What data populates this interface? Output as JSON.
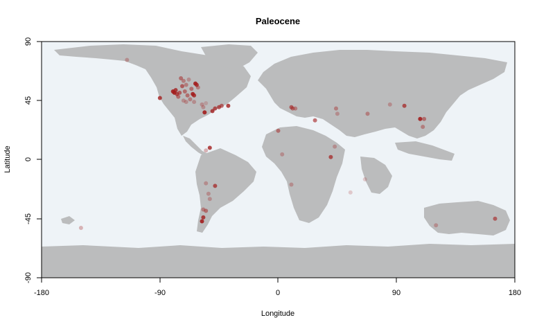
{
  "title": "Paleocene",
  "xlabel": "Longitude",
  "ylabel": "Latitude",
  "xlim": [
    -180,
    180
  ],
  "ylim": [
    -90,
    90
  ],
  "xticks": [
    "-180",
    "-90",
    "0",
    "90",
    "180"
  ],
  "yticks": [
    "90",
    "45",
    "0",
    "-45",
    "-90"
  ],
  "colors": {
    "ocean": "#eef3f7",
    "land": "#bbbcbd",
    "point": "#a31d1d",
    "frame": "#000000"
  },
  "chart_data": {
    "type": "scatter",
    "title": "Paleocene",
    "xlabel": "Longitude",
    "ylabel": "Latitude",
    "xlim": [
      -180,
      180
    ],
    "ylim": [
      -90,
      90
    ],
    "points": [
      {
        "lon": -115,
        "lat": 76,
        "a": 0.3
      },
      {
        "lon": -90,
        "lat": 47,
        "a": 0.8
      },
      {
        "lon": -80,
        "lat": 52,
        "a": 0.9
      },
      {
        "lon": -79,
        "lat": 51,
        "a": 0.9
      },
      {
        "lon": -78,
        "lat": 53,
        "a": 0.8
      },
      {
        "lon": -77,
        "lat": 50,
        "a": 0.7
      },
      {
        "lon": -76,
        "lat": 48,
        "a": 0.5
      },
      {
        "lon": -75,
        "lat": 51,
        "a": 0.6
      },
      {
        "lon": -74,
        "lat": 62,
        "a": 0.5
      },
      {
        "lon": -73,
        "lat": 56,
        "a": 0.6
      },
      {
        "lon": -72,
        "lat": 60,
        "a": 0.4
      },
      {
        "lon": -71,
        "lat": 52,
        "a": 0.5
      },
      {
        "lon": -70,
        "lat": 57,
        "a": 0.4
      },
      {
        "lon": -69,
        "lat": 49,
        "a": 0.5
      },
      {
        "lon": -68,
        "lat": 61,
        "a": 0.3
      },
      {
        "lon": -67,
        "lat": 46,
        "a": 0.4
      },
      {
        "lon": -66,
        "lat": 54,
        "a": 0.5
      },
      {
        "lon": -65,
        "lat": 50,
        "a": 0.9
      },
      {
        "lon": -64,
        "lat": 49,
        "a": 0.8
      },
      {
        "lon": -63,
        "lat": 58,
        "a": 0.9
      },
      {
        "lon": -62,
        "lat": 57,
        "a": 0.8
      },
      {
        "lon": -61,
        "lat": 55,
        "a": 0.4
      },
      {
        "lon": -64,
        "lat": 44,
        "a": 0.3
      },
      {
        "lon": -58,
        "lat": 42,
        "a": 0.3
      },
      {
        "lon": -57,
        "lat": 40,
        "a": 0.3
      },
      {
        "lon": -56,
        "lat": 36,
        "a": 0.9
      },
      {
        "lon": -55,
        "lat": 43,
        "a": 0.2
      },
      {
        "lon": -50,
        "lat": 37,
        "a": 0.8
      },
      {
        "lon": -48,
        "lat": 39,
        "a": 0.7
      },
      {
        "lon": -45,
        "lat": 40,
        "a": 0.7
      },
      {
        "lon": -43,
        "lat": 41,
        "a": 0.6
      },
      {
        "lon": -38,
        "lat": 41,
        "a": 0.8
      },
      {
        "lon": -70,
        "lat": 44,
        "a": 0.3
      },
      {
        "lon": -72,
        "lat": 45,
        "a": 0.3
      },
      {
        "lon": -52,
        "lat": 9,
        "a": 0.8
      },
      {
        "lon": -55,
        "lat": 7,
        "a": 0.3
      },
      {
        "lon": -48,
        "lat": -20,
        "a": 0.7
      },
      {
        "lon": -55,
        "lat": -18,
        "a": 0.3
      },
      {
        "lon": -53,
        "lat": -26,
        "a": 0.3
      },
      {
        "lon": -52,
        "lat": -30,
        "a": 0.3
      },
      {
        "lon": -57,
        "lat": -38,
        "a": 0.4
      },
      {
        "lon": -55,
        "lat": -39,
        "a": 0.5
      },
      {
        "lon": -57,
        "lat": -44,
        "a": 0.8
      },
      {
        "lon": -58,
        "lat": -47,
        "a": 0.9
      },
      {
        "lon": -150,
        "lat": -52,
        "a": 0.3
      },
      {
        "lon": 10,
        "lat": 40,
        "a": 0.6
      },
      {
        "lon": 11,
        "lat": 39,
        "a": 0.5
      },
      {
        "lon": 13,
        "lat": 39,
        "a": 0.4
      },
      {
        "lon": 0,
        "lat": 22,
        "a": 0.5
      },
      {
        "lon": 3,
        "lat": 4,
        "a": 0.3
      },
      {
        "lon": 28,
        "lat": 30,
        "a": 0.6
      },
      {
        "lon": 44,
        "lat": 39,
        "a": 0.4
      },
      {
        "lon": 45,
        "lat": 35,
        "a": 0.3
      },
      {
        "lon": 68,
        "lat": 35,
        "a": 0.4
      },
      {
        "lon": 85,
        "lat": 42,
        "a": 0.3
      },
      {
        "lon": 96,
        "lat": 41,
        "a": 0.7
      },
      {
        "lon": 108,
        "lat": 31,
        "a": 0.9
      },
      {
        "lon": 111,
        "lat": 31,
        "a": 0.5
      },
      {
        "lon": 110,
        "lat": 25,
        "a": 0.4
      },
      {
        "lon": 40,
        "lat": 2,
        "a": 0.7
      },
      {
        "lon": 43,
        "lat": 10,
        "a": 0.3
      },
      {
        "lon": 10,
        "lat": -19,
        "a": 0.3
      },
      {
        "lon": 66,
        "lat": -15,
        "a": 0.2
      },
      {
        "lon": 120,
        "lat": -50,
        "a": 0.3
      },
      {
        "lon": 165,
        "lat": -45,
        "a": 0.6
      },
      {
        "lon": 55,
        "lat": -25,
        "a": 0.2
      }
    ]
  }
}
